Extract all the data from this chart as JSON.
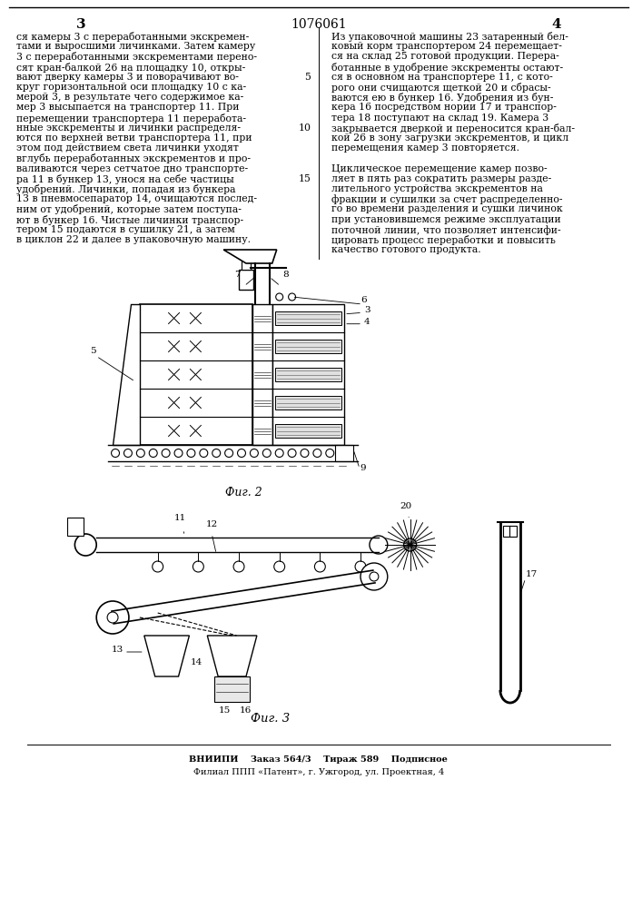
{
  "page_number_center": "1076061",
  "page_left": "3",
  "page_right": "4",
  "col_left_text": [
    "ся камеры 3 с переработанными экскремен-",
    "тами и выросшими личинками. Затем камеру",
    "3 с переработанными экскрементами перено-",
    "сят кран-балкой 26 на площадку 10, откры-",
    "вают дверку камеры 3 и поворачивают во-",
    "круг горизонтальной оси площадку 10 с ка-",
    "мерой 3, в результате чего содержимое ка-",
    "мер 3 высыпается на транспортер 11. При",
    "перемещении транспортера 11 переработа-",
    "нные экскременты и личинки распределя-",
    "ются по верхней ветви транспортера 11, при",
    "этом под действием света личинки уходят",
    "вглубь переработанных экскрементов и про-",
    "валиваются через сетчатое дно транспорте-",
    "ра 11 в бункер 13, унося на себе частицы",
    "удобрений. Личинки, попадая из бункера",
    "13 в пневмосепаратор 14, очищаются послед-",
    "ним от удобрений, которые затем поступа-",
    "ют в бункер 16. Чистые личинки транспор-",
    "тером 15 подаются в сушилку 21, а затем",
    "в циклон 22 и далее в упаковочную машину."
  ],
  "col_right_text": [
    "Из упаковочной машины 23 затаренный бел-",
    "ковый корм транспортером 24 перемещает-",
    "ся на склад 25 готовой продукции. Перера-",
    "ботанные в удобрение экскременты остают-",
    "ся в основном на транспортере 11, с кото-",
    "рого они счищаются щеткой 20 и сбрасы-",
    "ваются ею в бункер 16. Удобрения из бун-",
    "кера 16 посредством нории 17 и транспор-",
    "тера 18 поступают на склад 19. Камера 3",
    "закрывается дверкой и переносится кран-бал-",
    "кой 26 в зону загрузки экскрементов, и цикл",
    "перемещения камер 3 повторяется.",
    "",
    "Циклическое перемещение камер позво-",
    "ляет в пять раз сократить размеры разде-",
    "лительного устройства экскрементов на",
    "фракции и сушилки за счет распределенно-",
    "го во времени разделения и сушки личинок",
    "при установившемся режиме эксплуатации",
    "поточной линии, что позволяет интенсифи-",
    "цировать процесс переработки и повысить",
    "качество готового продукта."
  ],
  "fig2_label": "Фиг. 2",
  "fig3_label": "Фиг. 3",
  "footer_line1": "ВНИИПИ    Заказ 564/3    Тираж 589    Подписное",
  "footer_line2": "Филиал ППП «Патент», г. Ужгород, ул. Проектная, 4",
  "bg_color": "#ffffff",
  "text_color": "#000000",
  "body_fs": 7.8,
  "header_fs": 9.5,
  "label_fs": 7.5,
  "footer_fs": 7.0
}
